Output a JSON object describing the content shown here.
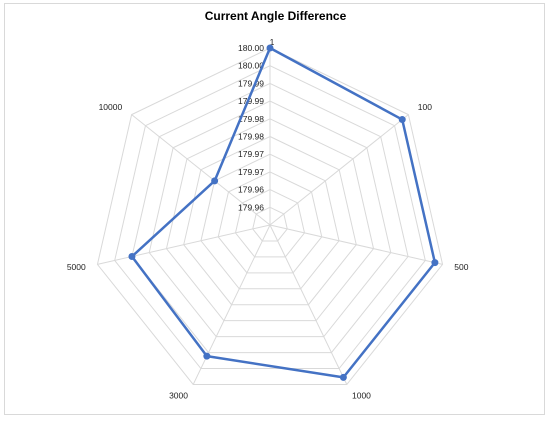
{
  "chart_data": {
    "type": "radar",
    "title": "Current Angle Difference",
    "categories": [
      "1",
      "100",
      "500",
      "1000",
      "3000",
      "5000",
      "10000"
    ],
    "series": [
      {
        "values": [
          180.0,
          179.998,
          179.998,
          179.998,
          179.992,
          179.991,
          179.973
        ]
      }
    ],
    "radial_tick_labels": [
      "179.96",
      "179.96",
      "179.97",
      "179.97",
      "179.98",
      "179.98",
      "179.99",
      "179.99",
      "180.00",
      "180.00"
    ],
    "range": [
      179.955,
      180.0
    ],
    "grid": true,
    "legend": "none",
    "colors": {
      "series": "#4472c4",
      "grid": "#d9d9d9"
    }
  }
}
